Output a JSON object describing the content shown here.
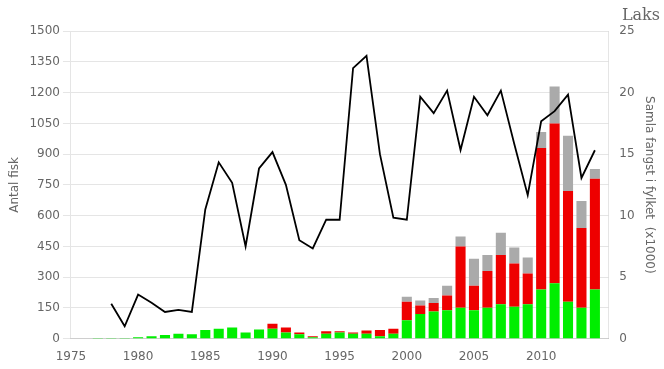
{
  "chart_data": {
    "type": "bar",
    "title": "Laks",
    "ylabel": "Antal fisk",
    "y2label": "Samla fangst i fylket  (x1000)",
    "xlim": [
      1975,
      2015
    ],
    "xticks": [
      1975,
      1980,
      1985,
      1990,
      1995,
      2000,
      2005,
      2010
    ],
    "ylim": [
      0,
      1500
    ],
    "yticks": [
      0,
      150,
      300,
      450,
      600,
      750,
      900,
      1050,
      1200,
      1350,
      1500
    ],
    "y2lim": [
      0,
      25
    ],
    "y2ticks": [
      0,
      5,
      10,
      15,
      20,
      25
    ],
    "stacked": true,
    "grid": true,
    "series": [
      {
        "type": "bar",
        "axis": "y2",
        "color": "#00ee00",
        "x": [
          1977,
          1978,
          1979,
          1980,
          1981,
          1982,
          1983,
          1984,
          1985,
          1986,
          1987,
          1988,
          1989,
          1990,
          1991,
          1992,
          1993,
          1994,
          1995,
          1996,
          1997,
          1998,
          1999,
          2000,
          2001,
          2002,
          2003,
          2004,
          2005,
          2006,
          2007,
          2008,
          2009,
          2010,
          2011,
          2012,
          2013,
          2014
        ],
        "values": [
          0.05,
          0.05,
          0.05,
          0.1,
          0.2,
          0.3,
          0.4,
          0.35,
          0.7,
          0.8,
          0.9,
          0.5,
          0.75,
          0.8,
          0.5,
          0.35,
          0.1,
          0.4,
          0.5,
          0.4,
          0.4,
          0.2,
          0.4,
          1.5,
          2.0,
          2.2,
          2.3,
          2.5,
          2.3,
          2.5,
          2.8,
          2.6,
          2.8,
          4.0,
          4.5,
          3.0,
          2.5,
          4.0
        ]
      },
      {
        "type": "bar",
        "axis": "y2",
        "color": "#ee0000",
        "x": [
          1977,
          1978,
          1979,
          1980,
          1981,
          1982,
          1983,
          1984,
          1985,
          1986,
          1987,
          1988,
          1989,
          1990,
          1991,
          1992,
          1993,
          1994,
          1995,
          1996,
          1997,
          1998,
          1999,
          2000,
          2001,
          2002,
          2003,
          2004,
          2005,
          2006,
          2007,
          2008,
          2009,
          2010,
          2011,
          2012,
          2013,
          2014
        ],
        "values": [
          0.0,
          0.0,
          0.0,
          0.0,
          0.0,
          0.0,
          0.0,
          0.0,
          0.0,
          0.0,
          0.0,
          0.0,
          0.0,
          0.4,
          0.4,
          0.15,
          0.1,
          0.2,
          0.1,
          0.1,
          0.25,
          0.5,
          0.4,
          1.5,
          0.7,
          0.7,
          1.2,
          5.0,
          2.0,
          3.0,
          4.0,
          3.5,
          2.5,
          11.5,
          13.0,
          9.0,
          6.5,
          9.0
        ]
      },
      {
        "type": "bar",
        "axis": "y2",
        "color": "#aaaaaa",
        "x": [
          1977,
          1978,
          1979,
          1980,
          1981,
          1982,
          1983,
          1984,
          1985,
          1986,
          1987,
          1988,
          1989,
          1990,
          1991,
          1992,
          1993,
          1994,
          1995,
          1996,
          1997,
          1998,
          1999,
          2000,
          2001,
          2002,
          2003,
          2004,
          2005,
          2006,
          2007,
          2008,
          2009,
          2010,
          2011,
          2012,
          2013,
          2014
        ],
        "values": [
          0.0,
          0.0,
          0.0,
          0.0,
          0.0,
          0.0,
          0.0,
          0.0,
          0.0,
          0.0,
          0.0,
          0.0,
          0.0,
          0.0,
          0.0,
          0.0,
          0.0,
          0.0,
          0.0,
          0.0,
          0.0,
          0.0,
          0.0,
          0.4,
          0.4,
          0.4,
          0.8,
          0.8,
          2.2,
          1.3,
          1.8,
          1.3,
          1.3,
          1.3,
          3.0,
          4.5,
          2.2,
          0.8
        ]
      },
      {
        "type": "line",
        "color": "#000000",
        "x": [
          1978,
          1979,
          1980,
          1981,
          1982,
          1983,
          1984,
          1985,
          1986,
          1987,
          1988,
          1989,
          1990,
          1991,
          1992,
          1993,
          1994,
          1995,
          1996,
          1997,
          1998,
          1999,
          2000,
          2001,
          2002,
          2003,
          2004,
          2005,
          2006,
          2007,
          2008,
          2009,
          2010,
          2011,
          2012,
          2013,
          2014
        ],
        "values": [
          170,
          60,
          215,
          175,
          130,
          140,
          130,
          630,
          860,
          760,
          450,
          830,
          910,
          750,
          480,
          440,
          580,
          580,
          1320,
          1380,
          900,
          590,
          580,
          1180,
          1100,
          1210,
          920,
          1180,
          1090,
          1210,
          950,
          700,
          1060,
          1110,
          1190,
          784,
          919
        ]
      }
    ]
  }
}
